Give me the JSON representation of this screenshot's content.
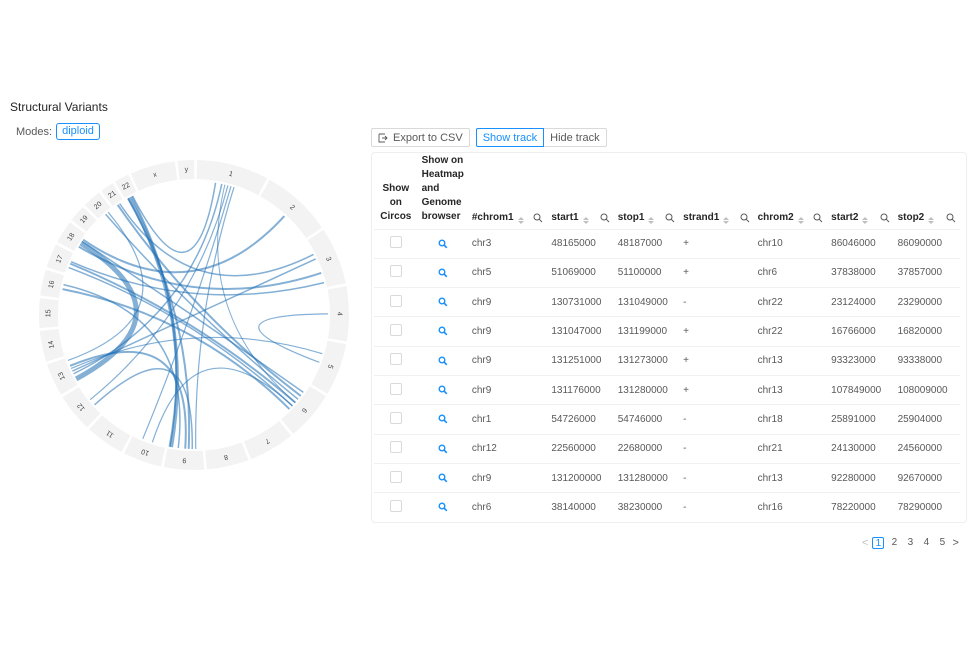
{
  "section": {
    "title": "Structural Variants",
    "modes_label": "Modes:",
    "mode_value": "diploid"
  },
  "toolbar": {
    "export_label": "Export to CSV",
    "show_track_label": "Show track",
    "hide_track_label": "Hide track",
    "active": "Show track"
  },
  "table": {
    "headers": {
      "show_on_circos": "Show on Circos",
      "show_on_heatmap": "Show on Heatmap and Genome browser",
      "chrom1": "#chrom1",
      "start1": "start1",
      "stop1": "stop1",
      "strand1": "strand1",
      "chrom2": "chrom2",
      "start2": "start2",
      "stop2": "stop2"
    },
    "rows": [
      {
        "chrom1": "chr3",
        "start1": "48165000",
        "stop1": "48187000",
        "strand1": "+",
        "chrom2": "chr10",
        "start2": "86046000",
        "stop2": "86090000"
      },
      {
        "chrom1": "chr5",
        "start1": "51069000",
        "stop1": "51100000",
        "strand1": "+",
        "chrom2": "chr6",
        "start2": "37838000",
        "stop2": "37857000"
      },
      {
        "chrom1": "chr9",
        "start1": "130731000",
        "stop1": "131049000",
        "strand1": "-",
        "chrom2": "chr22",
        "start2": "23124000",
        "stop2": "23290000"
      },
      {
        "chrom1": "chr9",
        "start1": "131047000",
        "stop1": "131199000",
        "strand1": "+",
        "chrom2": "chr22",
        "start2": "16766000",
        "stop2": "16820000"
      },
      {
        "chrom1": "chr9",
        "start1": "131251000",
        "stop1": "131273000",
        "strand1": "+",
        "chrom2": "chr13",
        "start2": "93323000",
        "stop2": "93338000"
      },
      {
        "chrom1": "chr9",
        "start1": "131176000",
        "stop1": "131280000",
        "strand1": "+",
        "chrom2": "chr13",
        "start2": "107849000",
        "stop2": "108009000"
      },
      {
        "chrom1": "chr1",
        "start1": "54726000",
        "stop1": "54746000",
        "strand1": "-",
        "chrom2": "chr18",
        "start2": "25891000",
        "stop2": "25904000"
      },
      {
        "chrom1": "chr12",
        "start1": "22560000",
        "stop1": "22680000",
        "strand1": "-",
        "chrom2": "chr21",
        "start2": "24130000",
        "stop2": "24560000"
      },
      {
        "chrom1": "chr9",
        "start1": "131200000",
        "stop1": "131280000",
        "strand1": "-",
        "chrom2": "chr13",
        "start2": "92280000",
        "stop2": "92670000"
      },
      {
        "chrom1": "chr6",
        "start1": "38140000",
        "stop1": "38230000",
        "strand1": "-",
        "chrom2": "chr16",
        "start2": "78220000",
        "stop2": "78290000"
      }
    ]
  },
  "pagination": {
    "pages": [
      "1",
      "2",
      "3",
      "4",
      "5"
    ],
    "current": "1",
    "prev": "<",
    "next": ">"
  },
  "circos": {
    "chromosomes": [
      "1",
      "2",
      "3",
      "4",
      "5",
      "6",
      "7",
      "8",
      "9",
      "10",
      "11",
      "12",
      "13",
      "14",
      "15",
      "16",
      "17",
      "18",
      "19",
      "20",
      "21",
      "22",
      "x",
      "y"
    ],
    "link_color": "#1f6fb4",
    "ideogram_color": "#f3f3f3"
  },
  "colors": {
    "accent": "#1890ff",
    "link": "#1f6fb4",
    "border": "#d9d9d9"
  }
}
